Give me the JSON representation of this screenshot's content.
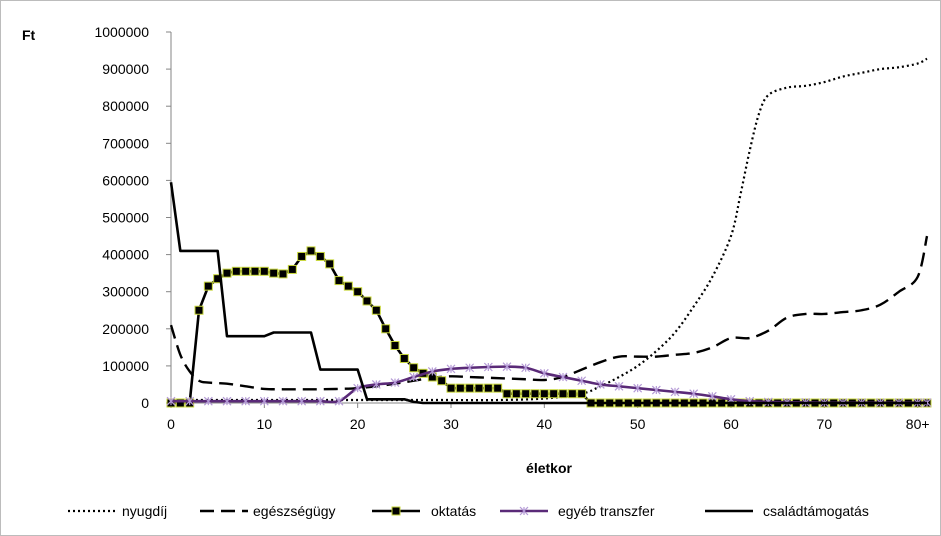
{
  "chart_data": {
    "type": "line",
    "title": "",
    "xlabel": "életkor",
    "ylabel": "Ft",
    "xlim": [
      0,
      81
    ],
    "ylim": [
      0,
      1000000
    ],
    "yticks": [
      0,
      100000,
      200000,
      300000,
      400000,
      500000,
      600000,
      700000,
      800000,
      900000,
      1000000
    ],
    "ytick_labels": [
      "0",
      "100000",
      "200000",
      "300000",
      "400000",
      "500000",
      "600000",
      "700000",
      "800000",
      "900000",
      "1000000"
    ],
    "xticks": [
      0,
      10,
      20,
      30,
      40,
      50,
      60,
      70,
      80
    ],
    "xtick_labels": [
      "0",
      "10",
      "20",
      "30",
      "40",
      "50",
      "60",
      "70",
      "80+"
    ],
    "grid": false,
    "legend_position": "bottom",
    "series": [
      {
        "name": "nyugdíj",
        "style": "dotted",
        "color": "#000000",
        "x": [
          0,
          20,
          25,
          30,
          35,
          40,
          44,
          46,
          48,
          50,
          52,
          54,
          56,
          58,
          60,
          61,
          62,
          63,
          64,
          66,
          68,
          70,
          72,
          74,
          76,
          78,
          80,
          81
        ],
        "y": [
          8000,
          8000,
          8000,
          8000,
          8000,
          12000,
          25000,
          45000,
          70000,
          100000,
          140000,
          190000,
          260000,
          340000,
          450000,
          560000,
          680000,
          780000,
          830000,
          850000,
          855000,
          865000,
          880000,
          890000,
          900000,
          905000,
          915000,
          928000
        ]
      },
      {
        "name": "egészségügy",
        "style": "dashed",
        "color": "#000000",
        "x": [
          0,
          1,
          2,
          3,
          4,
          6,
          8,
          10,
          12,
          14,
          16,
          18,
          20,
          22,
          24,
          26,
          28,
          30,
          32,
          34,
          36,
          38,
          40,
          42,
          44,
          46,
          48,
          50,
          52,
          54,
          56,
          58,
          60,
          62,
          64,
          66,
          68,
          70,
          72,
          74,
          76,
          78,
          80,
          81
        ],
        "y": [
          210000,
          130000,
          85000,
          60000,
          55000,
          52000,
          45000,
          38000,
          37000,
          37000,
          37000,
          38000,
          40000,
          45000,
          52000,
          60000,
          68000,
          72000,
          70000,
          68000,
          66000,
          64000,
          62000,
          70000,
          90000,
          110000,
          125000,
          125000,
          125000,
          130000,
          135000,
          150000,
          175000,
          175000,
          195000,
          230000,
          240000,
          240000,
          245000,
          250000,
          265000,
          300000,
          340000,
          450000
        ]
      },
      {
        "name": "oktatás",
        "style": "solid-square-markers",
        "color": "#000000",
        "marker_fill": "#000000",
        "marker_edge": "#c7d63a",
        "x": [
          0,
          1,
          2,
          3,
          4,
          5,
          6,
          7,
          8,
          9,
          10,
          11,
          12,
          13,
          14,
          15,
          16,
          17,
          18,
          19,
          20,
          21,
          22,
          23,
          24,
          25,
          26,
          27,
          28,
          29,
          30,
          31,
          32,
          33,
          34,
          35,
          36,
          37,
          38,
          39,
          40,
          41,
          42,
          43,
          44,
          45,
          46,
          47,
          48,
          49,
          50,
          51,
          52,
          53,
          54,
          55,
          56,
          57,
          58,
          59,
          60,
          61,
          62,
          63,
          64,
          65,
          66,
          67,
          68,
          69,
          70,
          71,
          72,
          73,
          74,
          75,
          76,
          77,
          78,
          79,
          80,
          81
        ],
        "y": [
          0,
          0,
          0,
          250000,
          315000,
          335000,
          350000,
          355000,
          355000,
          355000,
          355000,
          350000,
          348000,
          360000,
          395000,
          410000,
          395000,
          375000,
          330000,
          315000,
          300000,
          275000,
          250000,
          200000,
          155000,
          120000,
          95000,
          80000,
          70000,
          60000,
          40000,
          40000,
          40000,
          40000,
          40000,
          40000,
          25000,
          25000,
          25000,
          25000,
          25000,
          25000,
          25000,
          25000,
          25000,
          0,
          0,
          0,
          0,
          0,
          0,
          0,
          0,
          0,
          0,
          0,
          0,
          0,
          0,
          0,
          0,
          0,
          0,
          0,
          0,
          0,
          0,
          0,
          0,
          0,
          0,
          0,
          0,
          0,
          0,
          0,
          0,
          0,
          0,
          0,
          0,
          0
        ]
      },
      {
        "name": "egyéb transzfer",
        "style": "solid-star-markers",
        "color": "#5a2a78",
        "marker_color": "#b49ad6",
        "x": [
          0,
          2,
          4,
          6,
          8,
          10,
          12,
          14,
          16,
          18,
          20,
          22,
          24,
          26,
          28,
          30,
          32,
          34,
          36,
          38,
          40,
          42,
          44,
          46,
          48,
          50,
          52,
          54,
          56,
          58,
          60,
          62,
          64,
          66,
          68,
          70,
          72,
          74,
          76,
          78,
          80,
          81
        ],
        "y": [
          5000,
          5000,
          5000,
          5000,
          5000,
          5000,
          5000,
          5000,
          5000,
          5000,
          40000,
          50000,
          55000,
          70000,
          85000,
          92000,
          95000,
          97000,
          98000,
          95000,
          80000,
          70000,
          60000,
          50000,
          45000,
          40000,
          35000,
          30000,
          25000,
          18000,
          10000,
          5000,
          3000,
          2000,
          1500,
          1000,
          1000,
          1000,
          1000,
          1000,
          1000,
          1000
        ]
      },
      {
        "name": "családtámogatás",
        "style": "solid",
        "color": "#000000",
        "x": [
          0,
          1,
          2,
          3,
          4,
          5,
          6,
          7,
          8,
          9,
          10,
          11,
          12,
          13,
          14,
          15,
          16,
          17,
          18,
          19,
          20,
          21,
          22,
          23,
          24,
          25,
          26,
          27,
          30,
          40,
          50,
          60,
          70,
          81
        ],
        "y": [
          595000,
          410000,
          410000,
          410000,
          410000,
          410000,
          180000,
          180000,
          180000,
          180000,
          180000,
          190000,
          190000,
          190000,
          190000,
          190000,
          90000,
          90000,
          90000,
          90000,
          90000,
          10000,
          10000,
          10000,
          10000,
          10000,
          3000,
          0,
          0,
          0,
          0,
          0,
          0,
          0
        ]
      }
    ]
  }
}
